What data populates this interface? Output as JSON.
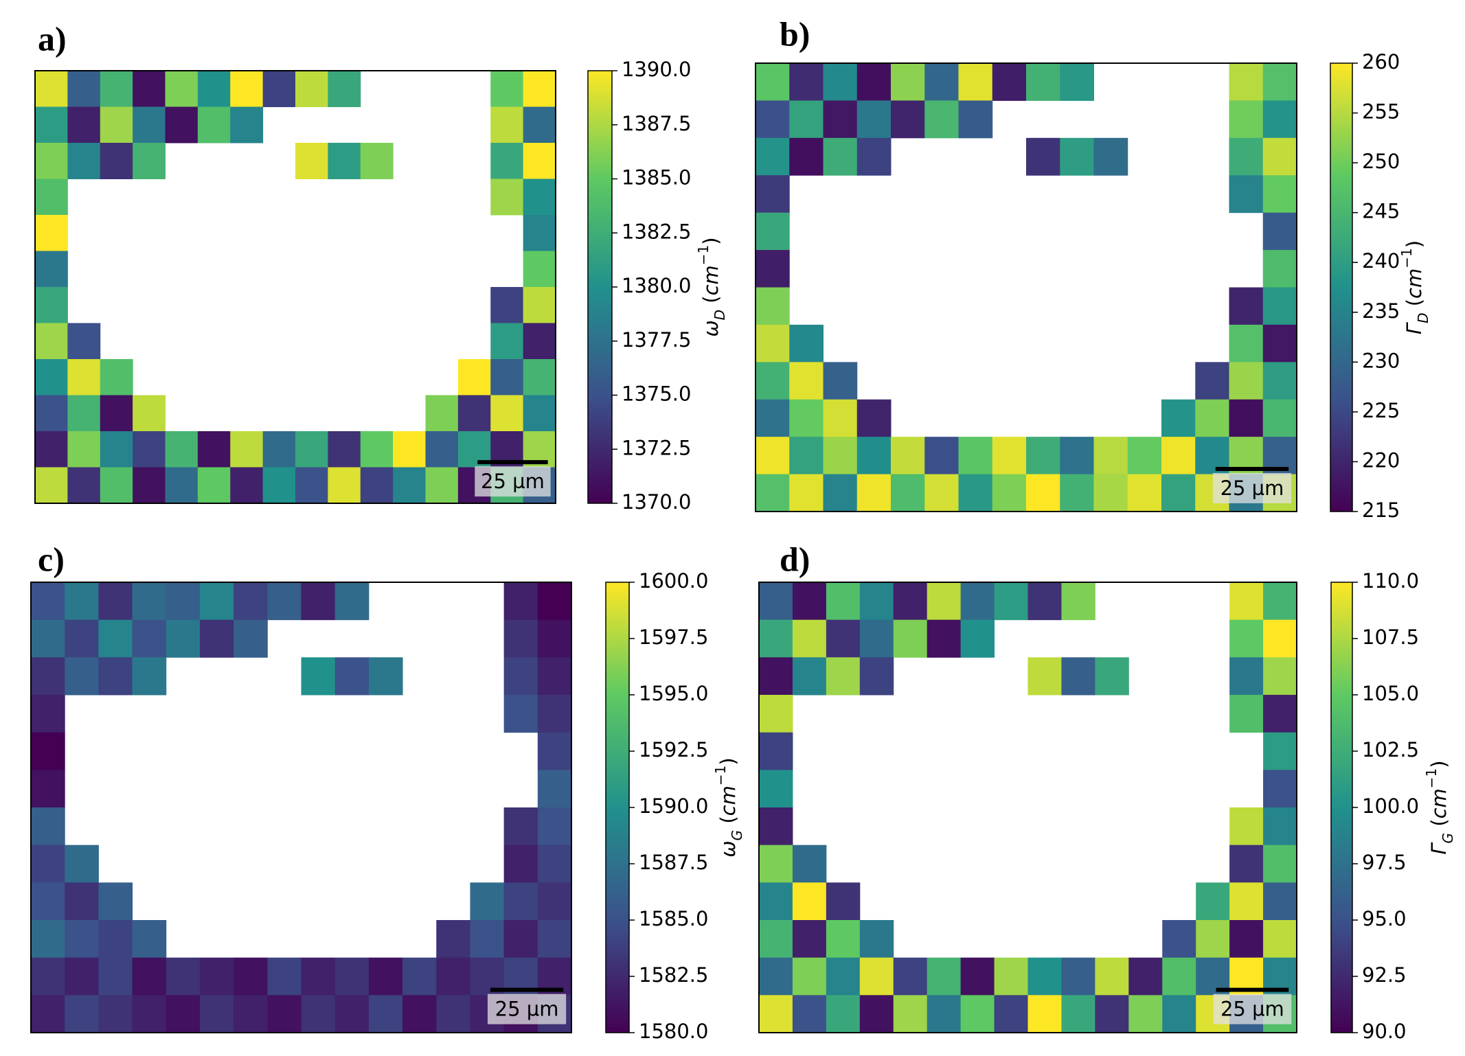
{
  "chart_data": [
    {
      "type": "heatmap",
      "panel_label": "a)",
      "colorbar_label": [
        "ω",
        "D",
        " (",
        "cm",
        "−1",
        ")"
      ],
      "scale_bar": "25 µm",
      "colormap": [
        "#440154",
        "#3b528b",
        "#21918c",
        "#5ec962",
        "#fde725"
      ],
      "clim": [
        1370,
        1390
      ],
      "cticks": [
        {
          "value": 1370,
          "label": "1370.0"
        },
        {
          "value": 1372.5,
          "label": "1372.5"
        },
        {
          "value": 1375,
          "label": "1375.0"
        },
        {
          "value": 1377.5,
          "label": "1377.5"
        },
        {
          "value": 1380,
          "label": "1380.0"
        },
        {
          "value": 1382.5,
          "label": "1382.5"
        },
        {
          "value": 1385,
          "label": "1385.0"
        },
        {
          "value": 1387.5,
          "label": "1387.5"
        },
        {
          "value": 1390,
          "label": "1390.0"
        }
      ],
      "values": [
        [
          1389,
          1376,
          1383,
          1371,
          1386,
          1380,
          1390,
          1374,
          1388,
          1382,
          null,
          null,
          null,
          null,
          1385,
          1390
        ],
        [
          1381,
          1372,
          1387,
          1378,
          1371,
          1384,
          1379,
          null,
          null,
          null,
          null,
          null,
          null,
          null,
          1388,
          1377
        ],
        [
          1386,
          1379,
          1373,
          1383,
          null,
          null,
          null,
          null,
          1389,
          1381,
          1386,
          null,
          null,
          null,
          1382,
          1390
        ],
        [
          1384,
          null,
          null,
          null,
          null,
          null,
          null,
          null,
          null,
          null,
          null,
          null,
          null,
          null,
          1387,
          1380
        ],
        [
          1390,
          null,
          null,
          null,
          null,
          null,
          null,
          null,
          null,
          null,
          null,
          null,
          null,
          null,
          null,
          1379
        ],
        [
          1378,
          null,
          null,
          null,
          null,
          null,
          null,
          null,
          null,
          null,
          null,
          null,
          null,
          null,
          null,
          1385
        ],
        [
          1382,
          null,
          null,
          null,
          null,
          null,
          null,
          null,
          null,
          null,
          null,
          null,
          null,
          null,
          1374,
          1388
        ],
        [
          1387,
          1375,
          null,
          null,
          null,
          null,
          null,
          null,
          null,
          null,
          null,
          null,
          null,
          null,
          1381,
          1372
        ],
        [
          1380,
          1389,
          1384,
          null,
          null,
          null,
          null,
          null,
          null,
          null,
          null,
          null,
          null,
          1390,
          1376,
          1383
        ],
        [
          1375,
          1383,
          1371,
          1388,
          null,
          null,
          null,
          null,
          null,
          null,
          null,
          null,
          1386,
          1373,
          1389,
          1379
        ],
        [
          1372,
          1386,
          1379,
          1374,
          1383,
          1371,
          1388,
          1377,
          1382,
          1373,
          1385,
          1390,
          1376,
          1381,
          1372,
          1387
        ],
        [
          1388,
          1373,
          1384,
          1371,
          1377,
          1385,
          1372,
          1380,
          1375,
          1389,
          1374,
          1379,
          1386,
          1371,
          1383,
          1376
        ]
      ]
    },
    {
      "type": "heatmap",
      "panel_label": "b)",
      "colorbar_label": [
        "Γ",
        "D",
        " (",
        "cm",
        "−1",
        ")"
      ],
      "scale_bar": "25 µm",
      "colormap": [
        "#440154",
        "#3b528b",
        "#21918c",
        "#5ec962",
        "#fde725"
      ],
      "clim": [
        215,
        260
      ],
      "cticks": [
        215,
        220,
        225,
        230,
        235,
        240,
        245,
        250,
        255,
        260
      ],
      "values": [
        [
          248,
          221,
          236,
          217,
          252,
          230,
          258,
          219,
          244,
          239,
          null,
          null,
          null,
          null,
          255,
          247
        ],
        [
          226,
          241,
          218,
          233,
          220,
          245,
          228,
          null,
          null,
          null,
          null,
          null,
          null,
          null,
          250,
          238
        ],
        [
          238,
          217,
          243,
          224,
          null,
          null,
          null,
          null,
          222,
          240,
          231,
          null,
          null,
          null,
          243,
          256
        ],
        [
          223,
          null,
          null,
          null,
          null,
          null,
          null,
          null,
          null,
          null,
          null,
          null,
          null,
          null,
          235,
          249
        ],
        [
          242,
          null,
          null,
          null,
          null,
          null,
          null,
          null,
          null,
          null,
          null,
          null,
          null,
          null,
          null,
          228
        ],
        [
          219,
          null,
          null,
          null,
          null,
          null,
          null,
          null,
          null,
          null,
          null,
          null,
          null,
          null,
          null,
          246
        ],
        [
          251,
          null,
          null,
          null,
          null,
          null,
          null,
          null,
          null,
          null,
          null,
          null,
          null,
          null,
          220,
          239
        ],
        [
          256,
          236,
          null,
          null,
          null,
          null,
          null,
          null,
          null,
          null,
          null,
          null,
          null,
          null,
          247,
          218
        ],
        [
          244,
          258,
          229,
          null,
          null,
          null,
          null,
          null,
          null,
          null,
          null,
          null,
          null,
          224,
          253,
          240
        ],
        [
          232,
          249,
          257,
          220,
          null,
          null,
          null,
          null,
          null,
          null,
          null,
          null,
          238,
          251,
          217,
          245
        ],
        [
          259,
          241,
          253,
          237,
          256,
          226,
          248,
          258,
          243,
          232,
          255,
          249,
          259,
          236,
          252,
          229
        ],
        [
          247,
          258,
          235,
          259,
          246,
          257,
          239,
          251,
          260,
          244,
          254,
          258,
          241,
          257,
          233,
          255
        ]
      ]
    },
    {
      "type": "heatmap",
      "panel_label": "c)",
      "colorbar_label": [
        "ω",
        "G",
        " (",
        "cm",
        "−1",
        ")"
      ],
      "scale_bar": "25 µm",
      "colormap": [
        "#440154",
        "#3b528b",
        "#21918c",
        "#5ec962",
        "#fde725"
      ],
      "clim": [
        1580,
        1600
      ],
      "cticks": [
        {
          "value": 1580,
          "label": "1580.0"
        },
        {
          "value": 1582.5,
          "label": "1582.5"
        },
        {
          "value": 1585,
          "label": "1585.0"
        },
        {
          "value": 1587.5,
          "label": "1587.5"
        },
        {
          "value": 1590,
          "label": "1590.0"
        },
        {
          "value": 1592.5,
          "label": "1592.5"
        },
        {
          "value": 1595,
          "label": "1595.0"
        },
        {
          "value": 1597.5,
          "label": "1597.5"
        },
        {
          "value": 1600,
          "label": "1600.0"
        }
      ],
      "values": [
        [
          1585,
          1588,
          1583,
          1587,
          1586,
          1589,
          1584,
          1586,
          1582,
          1587,
          null,
          null,
          null,
          null,
          1582,
          1580
        ],
        [
          1587,
          1584,
          1589,
          1585,
          1588,
          1583,
          1586,
          null,
          null,
          null,
          null,
          null,
          null,
          null,
          1583,
          1581
        ],
        [
          1583,
          1586,
          1584,
          1588,
          null,
          null,
          null,
          null,
          1590,
          1585,
          1588,
          null,
          null,
          null,
          1584,
          1582
        ],
        [
          1582,
          null,
          null,
          null,
          null,
          null,
          null,
          null,
          null,
          null,
          null,
          null,
          null,
          null,
          1585,
          1583
        ],
        [
          1580,
          null,
          null,
          null,
          null,
          null,
          null,
          null,
          null,
          null,
          null,
          null,
          null,
          null,
          null,
          1584
        ],
        [
          1581,
          null,
          null,
          null,
          null,
          null,
          null,
          null,
          null,
          null,
          null,
          null,
          null,
          null,
          null,
          1586
        ],
        [
          1586,
          null,
          null,
          null,
          null,
          null,
          null,
          null,
          null,
          null,
          null,
          null,
          null,
          null,
          1583,
          1585
        ],
        [
          1584,
          1587,
          null,
          null,
          null,
          null,
          null,
          null,
          null,
          null,
          null,
          null,
          null,
          null,
          1582,
          1584
        ],
        [
          1585,
          1583,
          1586,
          null,
          null,
          null,
          null,
          null,
          null,
          null,
          null,
          null,
          null,
          1587,
          1584,
          1583
        ],
        [
          1587,
          1585,
          1584,
          1586,
          null,
          null,
          null,
          null,
          null,
          null,
          null,
          null,
          1583,
          1585,
          1582,
          1584
        ],
        [
          1583,
          1582,
          1584,
          1581,
          1583,
          1582,
          1581,
          1584,
          1582,
          1583,
          1581,
          1584,
          1582,
          1583,
          1584,
          1582
        ],
        [
          1582,
          1584,
          1583,
          1582,
          1581,
          1583,
          1582,
          1581,
          1583,
          1582,
          1584,
          1581,
          1583,
          1582,
          1581,
          1583
        ]
      ]
    },
    {
      "type": "heatmap",
      "panel_label": "d)",
      "colorbar_label": [
        "Γ",
        "G",
        " (",
        "cm",
        "−1",
        ")"
      ],
      "scale_bar": "25 µm",
      "colormap": [
        "#440154",
        "#3b528b",
        "#21918c",
        "#5ec962",
        "#fde725"
      ],
      "clim": [
        90,
        110
      ],
      "cticks": [
        {
          "value": 90,
          "label": "90.0"
        },
        {
          "value": 92.5,
          "label": "92.5"
        },
        {
          "value": 95,
          "label": "95.0"
        },
        {
          "value": 97.5,
          "label": "97.5"
        },
        {
          "value": 100,
          "label": "100.0"
        },
        {
          "value": 102.5,
          "label": "102.5"
        },
        {
          "value": 105,
          "label": "105.0"
        },
        {
          "value": 107.5,
          "label": "107.5"
        },
        {
          "value": 110,
          "label": "110.0"
        }
      ],
      "values": [
        [
          96,
          91,
          104,
          99,
          92,
          108,
          97,
          101,
          93,
          106,
          null,
          null,
          null,
          null,
          109,
          103
        ],
        [
          102,
          108,
          93,
          97,
          106,
          91,
          100,
          null,
          null,
          null,
          null,
          null,
          null,
          null,
          105,
          110
        ],
        [
          91,
          99,
          107,
          94,
          null,
          null,
          null,
          null,
          108,
          96,
          102,
          null,
          null,
          null,
          98,
          107
        ],
        [
          108,
          null,
          null,
          null,
          null,
          null,
          null,
          null,
          null,
          null,
          null,
          null,
          null,
          null,
          104,
          92
        ],
        [
          94,
          null,
          null,
          null,
          null,
          null,
          null,
          null,
          null,
          null,
          null,
          null,
          null,
          null,
          null,
          101
        ],
        [
          100,
          null,
          null,
          null,
          null,
          null,
          null,
          null,
          null,
          null,
          null,
          null,
          null,
          null,
          null,
          95
        ],
        [
          92,
          null,
          null,
          null,
          null,
          null,
          null,
          null,
          null,
          null,
          null,
          null,
          null,
          null,
          108,
          99
        ],
        [
          106,
          97,
          null,
          null,
          null,
          null,
          null,
          null,
          null,
          null,
          null,
          null,
          null,
          null,
          93,
          104
        ],
        [
          99,
          110,
          93,
          null,
          null,
          null,
          null,
          null,
          null,
          null,
          null,
          null,
          null,
          102,
          109,
          96
        ],
        [
          103,
          92,
          105,
          98,
          null,
          null,
          null,
          null,
          null,
          null,
          null,
          null,
          95,
          107,
          91,
          108
        ],
        [
          97,
          106,
          99,
          109,
          94,
          103,
          91,
          107,
          100,
          96,
          108,
          92,
          104,
          97,
          110,
          99
        ],
        [
          109,
          95,
          102,
          91,
          107,
          98,
          105,
          94,
          110,
          102,
          93,
          106,
          99,
          109,
          96,
          104
        ]
      ]
    }
  ]
}
